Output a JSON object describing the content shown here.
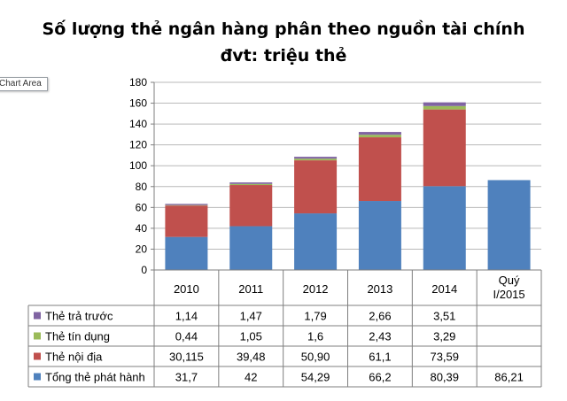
{
  "chart_data": {
    "type": "bar",
    "stacked": true,
    "title": "Số lượng thẻ ngân hàng phân theo nguồn tài chính",
    "subtitle": "đvt: triệu thẻ",
    "categories": [
      "2010",
      "2011",
      "2012",
      "2013",
      "2014",
      "Quý I/2015"
    ],
    "ylim": [
      0,
      180
    ],
    "yticks": [
      0,
      20,
      40,
      60,
      80,
      100,
      120,
      140,
      160,
      180
    ],
    "grid": true,
    "legend": "table-bottom",
    "stack_order": [
      "Tổng thẻ phát hành",
      "Thẻ nội địa",
      "Thẻ tín dụng",
      "Thẻ trả trước"
    ],
    "table_rows": [
      {
        "name": "Thẻ trả trước",
        "color": "#8064a2",
        "labels": [
          "1,14",
          "1,47",
          "1,79",
          "2,66",
          "3,51",
          ""
        ],
        "values": [
          1.14,
          1.47,
          1.79,
          2.66,
          3.51,
          null
        ]
      },
      {
        "name": "Thẻ tín dụng",
        "color": "#9bbb59",
        "labels": [
          "0,44",
          "1,05",
          "1,6",
          "2,43",
          "3,29",
          ""
        ],
        "values": [
          0.44,
          1.05,
          1.6,
          2.43,
          3.29,
          null
        ]
      },
      {
        "name": "Thẻ nội địa",
        "color": "#c0504d",
        "labels": [
          "30,115",
          "39,48",
          "50,90",
          "61,1",
          "73,59",
          ""
        ],
        "values": [
          30.115,
          39.48,
          50.9,
          61.1,
          73.59,
          null
        ]
      },
      {
        "name": "Tổng thẻ phát hành",
        "color": "#4f81bd",
        "labels": [
          "31,7",
          "42",
          "54,29",
          "66,2",
          "80,39",
          "86,21"
        ],
        "values": [
          31.7,
          42,
          54.29,
          66.2,
          80.39,
          86.21
        ]
      }
    ]
  },
  "tooltip_text": "Chart Area"
}
